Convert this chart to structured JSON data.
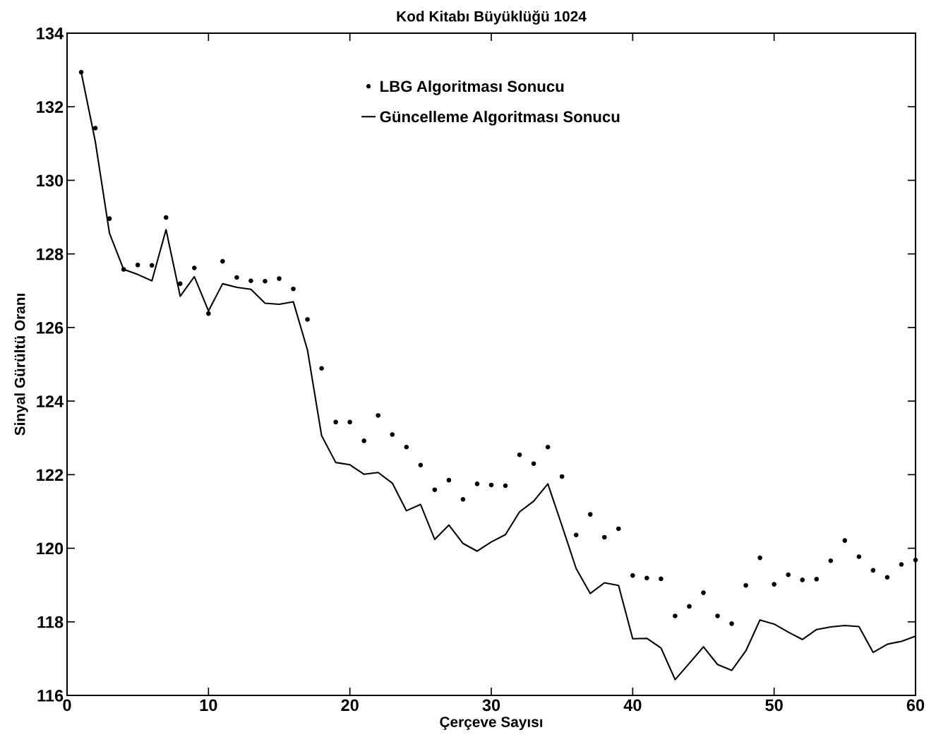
{
  "chart_data": {
    "type": "line",
    "title": "Kod Kitabı Büyüklüğü 1024",
    "xlabel": "Çerçeve Sayısı",
    "ylabel": "Sinyal Gürültü Oranı",
    "x": [
      1,
      2,
      3,
      4,
      5,
      6,
      7,
      8,
      9,
      10,
      11,
      12,
      13,
      14,
      15,
      16,
      17,
      18,
      19,
      20,
      21,
      22,
      23,
      24,
      25,
      26,
      27,
      28,
      29,
      30,
      31,
      32,
      33,
      34,
      35,
      36,
      37,
      38,
      39,
      40,
      41,
      42,
      43,
      44,
      45,
      46,
      47,
      48,
      49,
      50,
      51,
      52,
      53,
      54,
      55,
      56,
      57,
      58,
      59,
      60
    ],
    "series": [
      {
        "name": "LBG Algoritması Sonucu",
        "type": "scatter",
        "marker": "circle",
        "color": "#000000",
        "values": [
          132.94,
          131.42,
          128.96,
          127.58,
          127.7,
          127.69,
          128.99,
          127.19,
          127.62,
          126.38,
          127.8,
          127.36,
          127.27,
          127.26,
          127.33,
          127.05,
          126.22,
          124.89,
          123.43,
          123.43,
          122.92,
          123.61,
          123.09,
          122.75,
          122.26,
          121.59,
          121.85,
          121.33,
          121.75,
          121.72,
          121.7,
          122.54,
          122.3,
          122.75,
          121.95,
          120.36,
          120.92,
          120.3,
          120.53,
          119.26,
          119.19,
          119.17,
          118.16,
          118.42,
          118.79,
          118.16,
          117.95,
          118.99,
          119.74,
          119.02,
          119.28,
          119.14,
          119.16,
          119.66,
          120.21,
          119.77,
          119.4,
          119.21,
          119.56,
          119.68
        ]
      },
      {
        "name": "Güncelleme Algoritması Sonucu",
        "line_style": "solid",
        "color": "#000000",
        "values": [
          132.94,
          131.05,
          128.56,
          127.58,
          127.44,
          127.27,
          128.66,
          126.85,
          127.38,
          126.45,
          127.19,
          127.09,
          127.04,
          126.66,
          126.63,
          126.7,
          125.39,
          123.06,
          122.33,
          122.27,
          122.01,
          122.06,
          121.77,
          121.02,
          121.19,
          120.24,
          120.63,
          120.13,
          119.92,
          120.17,
          120.37,
          120.99,
          121.28,
          121.75,
          120.61,
          119.45,
          118.77,
          119.06,
          118.99,
          117.54,
          117.55,
          117.29,
          116.43,
          116.87,
          117.32,
          116.84,
          116.68,
          117.21,
          118.05,
          117.94,
          117.72,
          117.52,
          117.79,
          117.86,
          117.9,
          117.87,
          117.17,
          117.39,
          117.47,
          117.61
        ]
      }
    ],
    "xlim": [
      0,
      60
    ],
    "xticks": [
      0,
      10,
      20,
      30,
      40,
      50,
      60
    ],
    "ylim": [
      116,
      134
    ],
    "yticks": [
      116,
      118,
      120,
      122,
      124,
      126,
      128,
      130,
      132,
      134
    ],
    "grid": false,
    "legend": "top"
  }
}
